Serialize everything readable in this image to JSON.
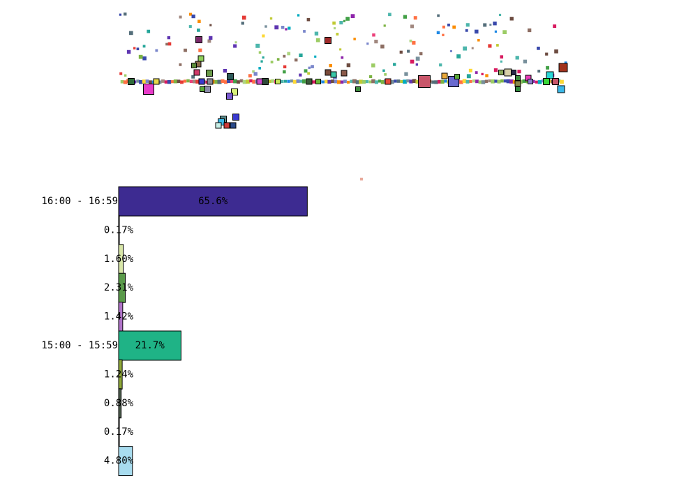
{
  "chart_data": [
    {
      "type": "scatter",
      "title": "",
      "xlabel": "",
      "ylabel": "",
      "grid": false,
      "axes_visible": false
    },
    {
      "type": "bar",
      "orientation": "horizontal",
      "title": "",
      "xlabel": "",
      "ylabel": "",
      "categories": [
        "16:00 - 16:59",
        "",
        "",
        "",
        "",
        "15:00 - 15:59",
        "",
        "",
        "",
        ""
      ],
      "values": [
        65.6,
        0.17,
        1.6,
        2.31,
        1.42,
        21.7,
        1.24,
        0.88,
        0.17,
        4.8
      ],
      "value_labels": [
        "65.6%",
        "0.17%",
        "1.60%",
        "2.31%",
        "1.42%",
        "21.7%",
        "1.24%",
        "0.88%",
        "0.17%",
        "4.80%"
      ],
      "colors": [
        "#3d2b91",
        "#e0e0e0",
        "#d8e6a8",
        "#5a9a4a",
        "#b073c8",
        "#1fb386",
        "#8fa83a",
        "#4a5a4a",
        "#e8e8e8",
        "#a8dcef"
      ],
      "xlim": [
        0,
        66
      ]
    }
  ]
}
